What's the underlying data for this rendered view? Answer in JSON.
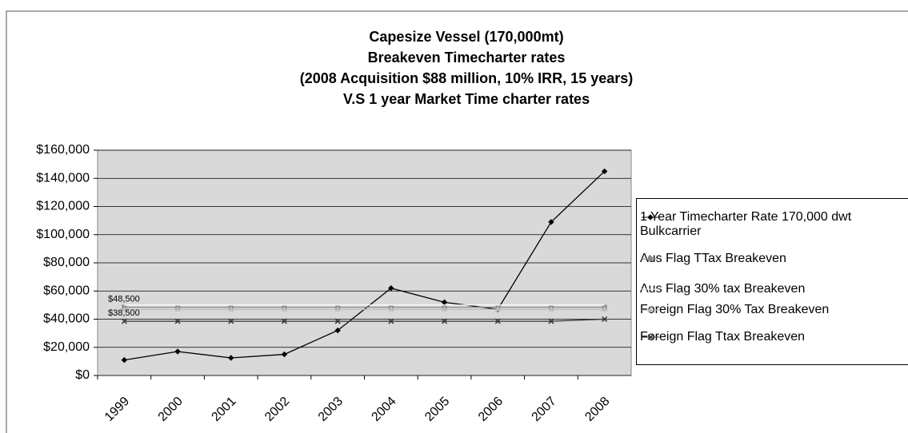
{
  "chart_data": {
    "type": "line",
    "title": [
      "Capesize Vessel (170,000mt)",
      "Breakeven Timecharter rates",
      "(2008 Acquisition $88 million, 10% IRR, 15 years)",
      "V.S 1 year Market Time charter rates"
    ],
    "categories": [
      "1999",
      "2000",
      "2001",
      "2002",
      "2003",
      "2004",
      "2005",
      "2006",
      "2007",
      "2008"
    ],
    "series": [
      {
        "name": "1 Year Timecharter Rate 170,000 dwt Bulkcarrier",
        "color": "#000000",
        "marker": "diamond",
        "values": [
          11000,
          17000,
          12500,
          15000,
          32000,
          62000,
          52000,
          47000,
          109000,
          145000
        ]
      },
      {
        "name": "Aus Flag TTax Breakeven",
        "color": "#8c8c8c",
        "marker": "square",
        "values": [
          48500,
          48500,
          48500,
          48500,
          48500,
          48500,
          48500,
          48500,
          48500,
          48500
        ]
      },
      {
        "name": "Aus Flag 30% tax Breakeven",
        "color": "#ffffff",
        "marker": "none",
        "values": [
          50000,
          50000,
          50000,
          50000,
          50000,
          50000,
          50000,
          50000,
          50000,
          50000
        ]
      },
      {
        "name": "Foreign Flag 30% Tax Breakeven",
        "color": "#bdbdbd",
        "marker": "triangle",
        "values": [
          47000,
          47000,
          47000,
          47000,
          47000,
          47000,
          47000,
          47000,
          47000,
          47000
        ]
      },
      {
        "name": "Foreign Flag Ttax Breakeven",
        "color": "#333333",
        "marker": "x",
        "values": [
          38500,
          38500,
          38500,
          38500,
          38500,
          38500,
          38500,
          38500,
          38500,
          40000
        ]
      }
    ],
    "annotations": [
      {
        "text": "$48,500",
        "value": 48500
      },
      {
        "text": "$38,500",
        "value": 38500
      }
    ],
    "ylim": [
      0,
      160000
    ],
    "yticks": [
      {
        "value": 0,
        "label": "$0"
      },
      {
        "value": 20000,
        "label": "$20,000"
      },
      {
        "value": 40000,
        "label": "$40,000"
      },
      {
        "value": 60000,
        "label": "$60,000"
      },
      {
        "value": 80000,
        "label": "$80,000"
      },
      {
        "value": 100000,
        "label": "$100,000"
      },
      {
        "value": 120000,
        "label": "$120,000"
      },
      {
        "value": 140000,
        "label": "$140,000"
      },
      {
        "value": 160000,
        "label": "$160,000"
      }
    ],
    "grid": true,
    "legend": "right"
  }
}
